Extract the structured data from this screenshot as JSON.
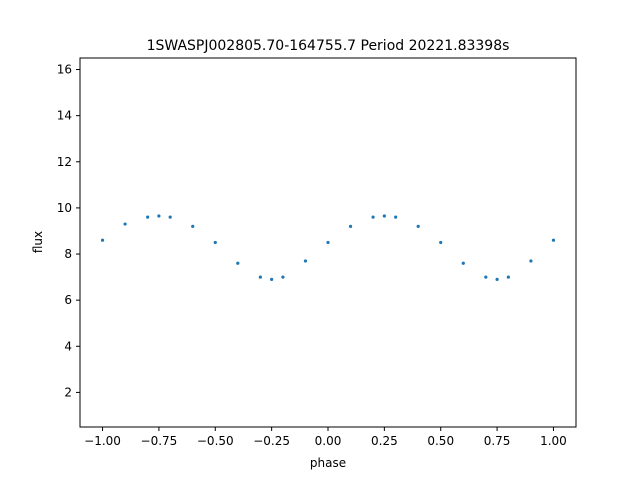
{
  "chart_data": {
    "type": "scatter",
    "title": "1SWASPJ002805.70-164755.7 Period 20221.83398s",
    "xlabel": "phase",
    "ylabel": "flux",
    "xlim": [
      -1.1,
      1.1
    ],
    "ylim": [
      0.5,
      16.5
    ],
    "xticks": [
      -1.0,
      -0.75,
      -0.5,
      -0.25,
      0.0,
      0.25,
      0.5,
      0.75,
      1.0
    ],
    "xtick_labels": [
      "−1.00",
      "−0.75",
      "−0.50",
      "−0.25",
      "0.00",
      "0.25",
      "0.50",
      "0.75",
      "1.00"
    ],
    "yticks": [
      2,
      4,
      6,
      8,
      10,
      12,
      14,
      16
    ],
    "ytick_labels": [
      "2",
      "4",
      "6",
      "8",
      "10",
      "12",
      "14",
      "16"
    ],
    "grid": false,
    "marker_color": "#1f77b4",
    "series": [
      {
        "x": [
          -1.0,
          -0.9,
          -0.8,
          -0.75,
          -0.7,
          -0.6,
          -0.5,
          -0.4,
          -0.3,
          -0.25,
          -0.2,
          -0.1,
          0.0,
          0.1,
          0.2,
          0.25,
          0.3,
          0.4,
          0.5,
          0.6,
          0.7,
          0.75,
          0.8,
          0.9,
          1.0
        ],
        "y": [
          8.6,
          9.3,
          9.6,
          9.65,
          9.6,
          9.2,
          8.5,
          7.6,
          7.0,
          6.9,
          7.0,
          7.7,
          8.5,
          9.2,
          9.6,
          9.65,
          9.6,
          9.2,
          8.5,
          7.6,
          7.0,
          6.9,
          7.0,
          7.7,
          8.6
        ]
      }
    ]
  }
}
